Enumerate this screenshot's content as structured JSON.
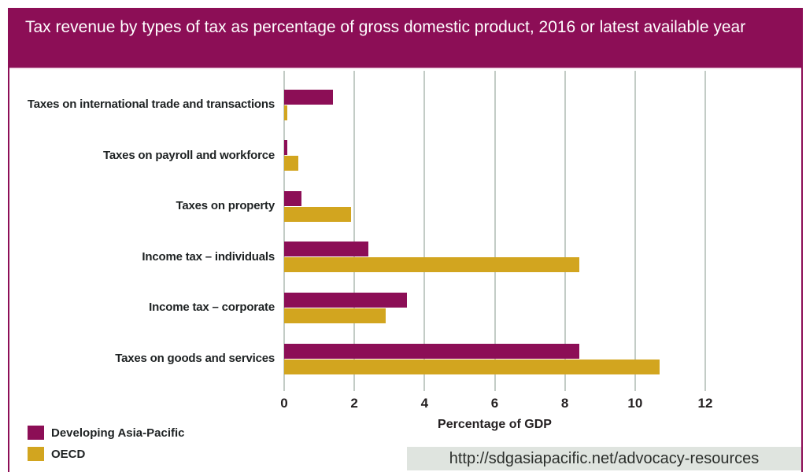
{
  "title": "Tax revenue by types of tax as percentage of gross domestic product, 2016 or latest available year",
  "source_url": "http://sdgasiapacific.net/advocacy-resources",
  "colors": {
    "brand_magenta": "#8C0E56",
    "gold": "#D2A51F",
    "gridline": "#C3CCC6",
    "url_box_bg": "#DFE4DF",
    "text": "#231F20"
  },
  "chart_data": {
    "type": "bar",
    "orientation": "horizontal",
    "title": "Tax revenue by types of tax as percentage of gross domestic product, 2016 or latest available year",
    "xlabel": "Percentage of GDP",
    "ylabel": "",
    "xlim": [
      0,
      12
    ],
    "xticks": [
      0,
      2,
      4,
      6,
      8,
      10,
      12
    ],
    "grid": true,
    "legend_position": "bottom-left",
    "categories": [
      "Taxes on international trade and transactions",
      "Taxes on payroll and workforce",
      "Taxes on property",
      "Income tax – individuals",
      "Income tax – corporate",
      "Taxes on goods and services"
    ],
    "series": [
      {
        "name": "Developing Asia-Pacific",
        "color": "#8C0E56",
        "values": [
          1.4,
          0.1,
          0.5,
          2.4,
          3.5,
          8.4
        ]
      },
      {
        "name": "OECD",
        "color": "#D2A51F",
        "values": [
          0.1,
          0.4,
          1.9,
          8.4,
          2.9,
          10.7
        ]
      }
    ]
  }
}
